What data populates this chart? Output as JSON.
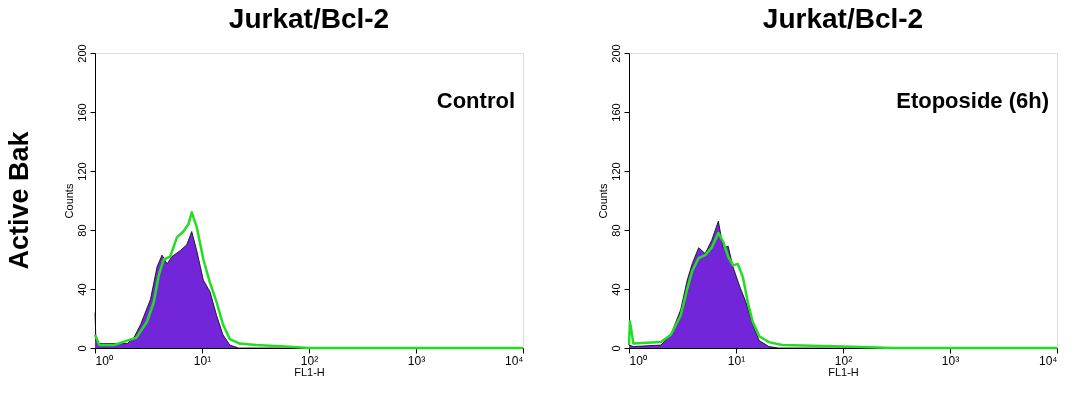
{
  "chart_data": [
    {
      "type": "area",
      "title": "Jurkat/Bcl-2",
      "xlabel": "FL1-H",
      "ylabel": "Counts",
      "annotations": [
        "Control",
        "Active Bak"
      ],
      "log": "x",
      "xlim": [
        1,
        10000
      ],
      "ylim": [
        0,
        200
      ],
      "xticks": [
        {
          "value": 1,
          "label": "10⁰"
        },
        {
          "value": 10,
          "label": "10¹"
        },
        {
          "value": 100,
          "label": "10²"
        },
        {
          "value": 1000,
          "label": "10³"
        },
        {
          "value": 10000,
          "label": "10⁴"
        }
      ],
      "yticks": [
        0,
        40,
        80,
        120,
        160,
        200
      ],
      "grid": false,
      "series": [
        {
          "color": "#7326d9",
          "x": [
            1,
            1.02,
            1.1,
            1.5,
            2.0,
            2.31,
            2.67,
            3.3,
            3.8,
            4.23,
            4.71,
            5.24,
            6.25,
            7.21,
            8.02,
            8.93,
            10.3,
            11.9,
            13.7,
            15.7,
            18.2,
            22,
            10000
          ],
          "values": [
            24,
            5,
            3,
            3,
            3,
            7,
            16,
            33,
            55,
            63,
            57,
            62,
            66,
            70,
            79,
            66,
            46,
            38,
            22,
            9,
            2,
            0,
            0
          ]
        },
        {
          "type": "line",
          "color": "#22dd22",
          "x": [
            1,
            1.1,
            1.51,
            2.0,
            2.44,
            3.07,
            3.54,
            3.94,
            4.38,
            5.05,
            5.83,
            6.71,
            7.47,
            8.02,
            8.93,
            10.3,
            11.9,
            13.7,
            15.7,
            18.2,
            22.5,
            32,
            60,
            100,
            10000
          ],
          "values": [
            9,
            2,
            2,
            5,
            7,
            18,
            31,
            49,
            60,
            62,
            75,
            79,
            84,
            92,
            82,
            60,
            44,
            31,
            16,
            6,
            3,
            2,
            1,
            0,
            0
          ]
        }
      ]
    },
    {
      "type": "area",
      "title": "Jurkat/Bcl-2",
      "xlabel": "FL1-H",
      "ylabel": "Counts",
      "annotations": [
        "Etoposide (6h)"
      ],
      "log": "x",
      "xlim": [
        1,
        10000
      ],
      "ylim": [
        0,
        200
      ],
      "xticks": [
        {
          "value": 1,
          "label": "10⁰"
        },
        {
          "value": 10,
          "label": "10¹"
        },
        {
          "value": 100,
          "label": "10²"
        },
        {
          "value": 1000,
          "label": "10³"
        },
        {
          "value": 10000,
          "label": "10⁴"
        }
      ],
      "yticks": [
        0,
        40,
        80,
        120,
        160,
        200
      ],
      "grid": false,
      "series": [
        {
          "color": "#7326d9",
          "x": [
            1,
            1.1,
            1.99,
            2.46,
            3.04,
            3.5,
            3.89,
            4.48,
            5.15,
            5.93,
            6.84,
            7.6,
            8.45,
            9.38,
            10.8,
            12.4,
            14.3,
            16.5,
            20.3,
            25,
            10000
          ],
          "values": [
            2,
            1,
            2,
            9,
            26,
            46,
            57,
            68,
            64,
            73,
            86,
            68,
            69,
            55,
            42,
            31,
            16,
            5,
            1,
            0,
            0
          ]
        },
        {
          "type": "line",
          "color": "#22dd22",
          "x": [
            1,
            1.02,
            1.1,
            1.99,
            2.46,
            3.04,
            3.5,
            3.89,
            4.48,
            5.15,
            5.93,
            6.84,
            7.6,
            8.45,
            9.38,
            10.4,
            11.6,
            12.9,
            14.3,
            16.5,
            20.3,
            27,
            100,
            300,
            10000
          ],
          "values": [
            2,
            18,
            3,
            4,
            9,
            22,
            40,
            52,
            61,
            63,
            68,
            78,
            72,
            62,
            56,
            57,
            48,
            31,
            18,
            8,
            4,
            2,
            1,
            0,
            0
          ]
        }
      ]
    }
  ]
}
